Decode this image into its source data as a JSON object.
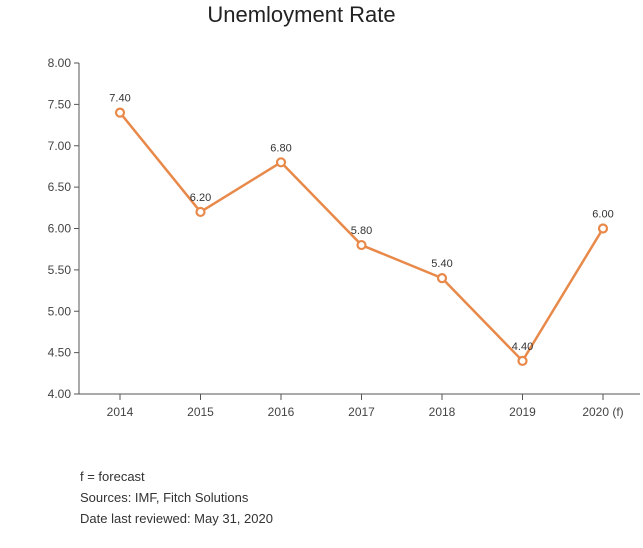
{
  "colors": {
    "series": "#e8894a",
    "axis": "#555555"
  },
  "chart_data": {
    "type": "line",
    "title": "Unemloyment Rate",
    "xlabel": "",
    "ylabel": "",
    "categories": [
      "2014",
      "2015",
      "2016",
      "2017",
      "2018",
      "2019",
      "2020 (f)"
    ],
    "series": [
      {
        "values": [
          7.4,
          6.2,
          6.8,
          5.8,
          5.4,
          4.4,
          6.0
        ],
        "data_labels": [
          "7.40",
          "6.20",
          "6.80",
          "5.80",
          "5.40",
          "4.40",
          "6.00"
        ]
      }
    ],
    "ylim": [
      4.0,
      8.0
    ],
    "yticks": [
      4.0,
      4.5,
      5.0,
      5.5,
      6.0,
      6.5,
      7.0,
      7.5,
      8.0
    ],
    "ytick_labels": [
      "4.00",
      "4.50",
      "5.00",
      "5.50",
      "6.00",
      "6.50",
      "7.00",
      "7.50",
      "8.00"
    ],
    "grid": false,
    "legend": "none",
    "marker": "hollow-circle"
  },
  "footnotes": {
    "forecast_note": "f = forecast",
    "sources": "Sources: IMF, Fitch Solutions",
    "reviewed": "Date last reviewed: May 31, 2020"
  }
}
